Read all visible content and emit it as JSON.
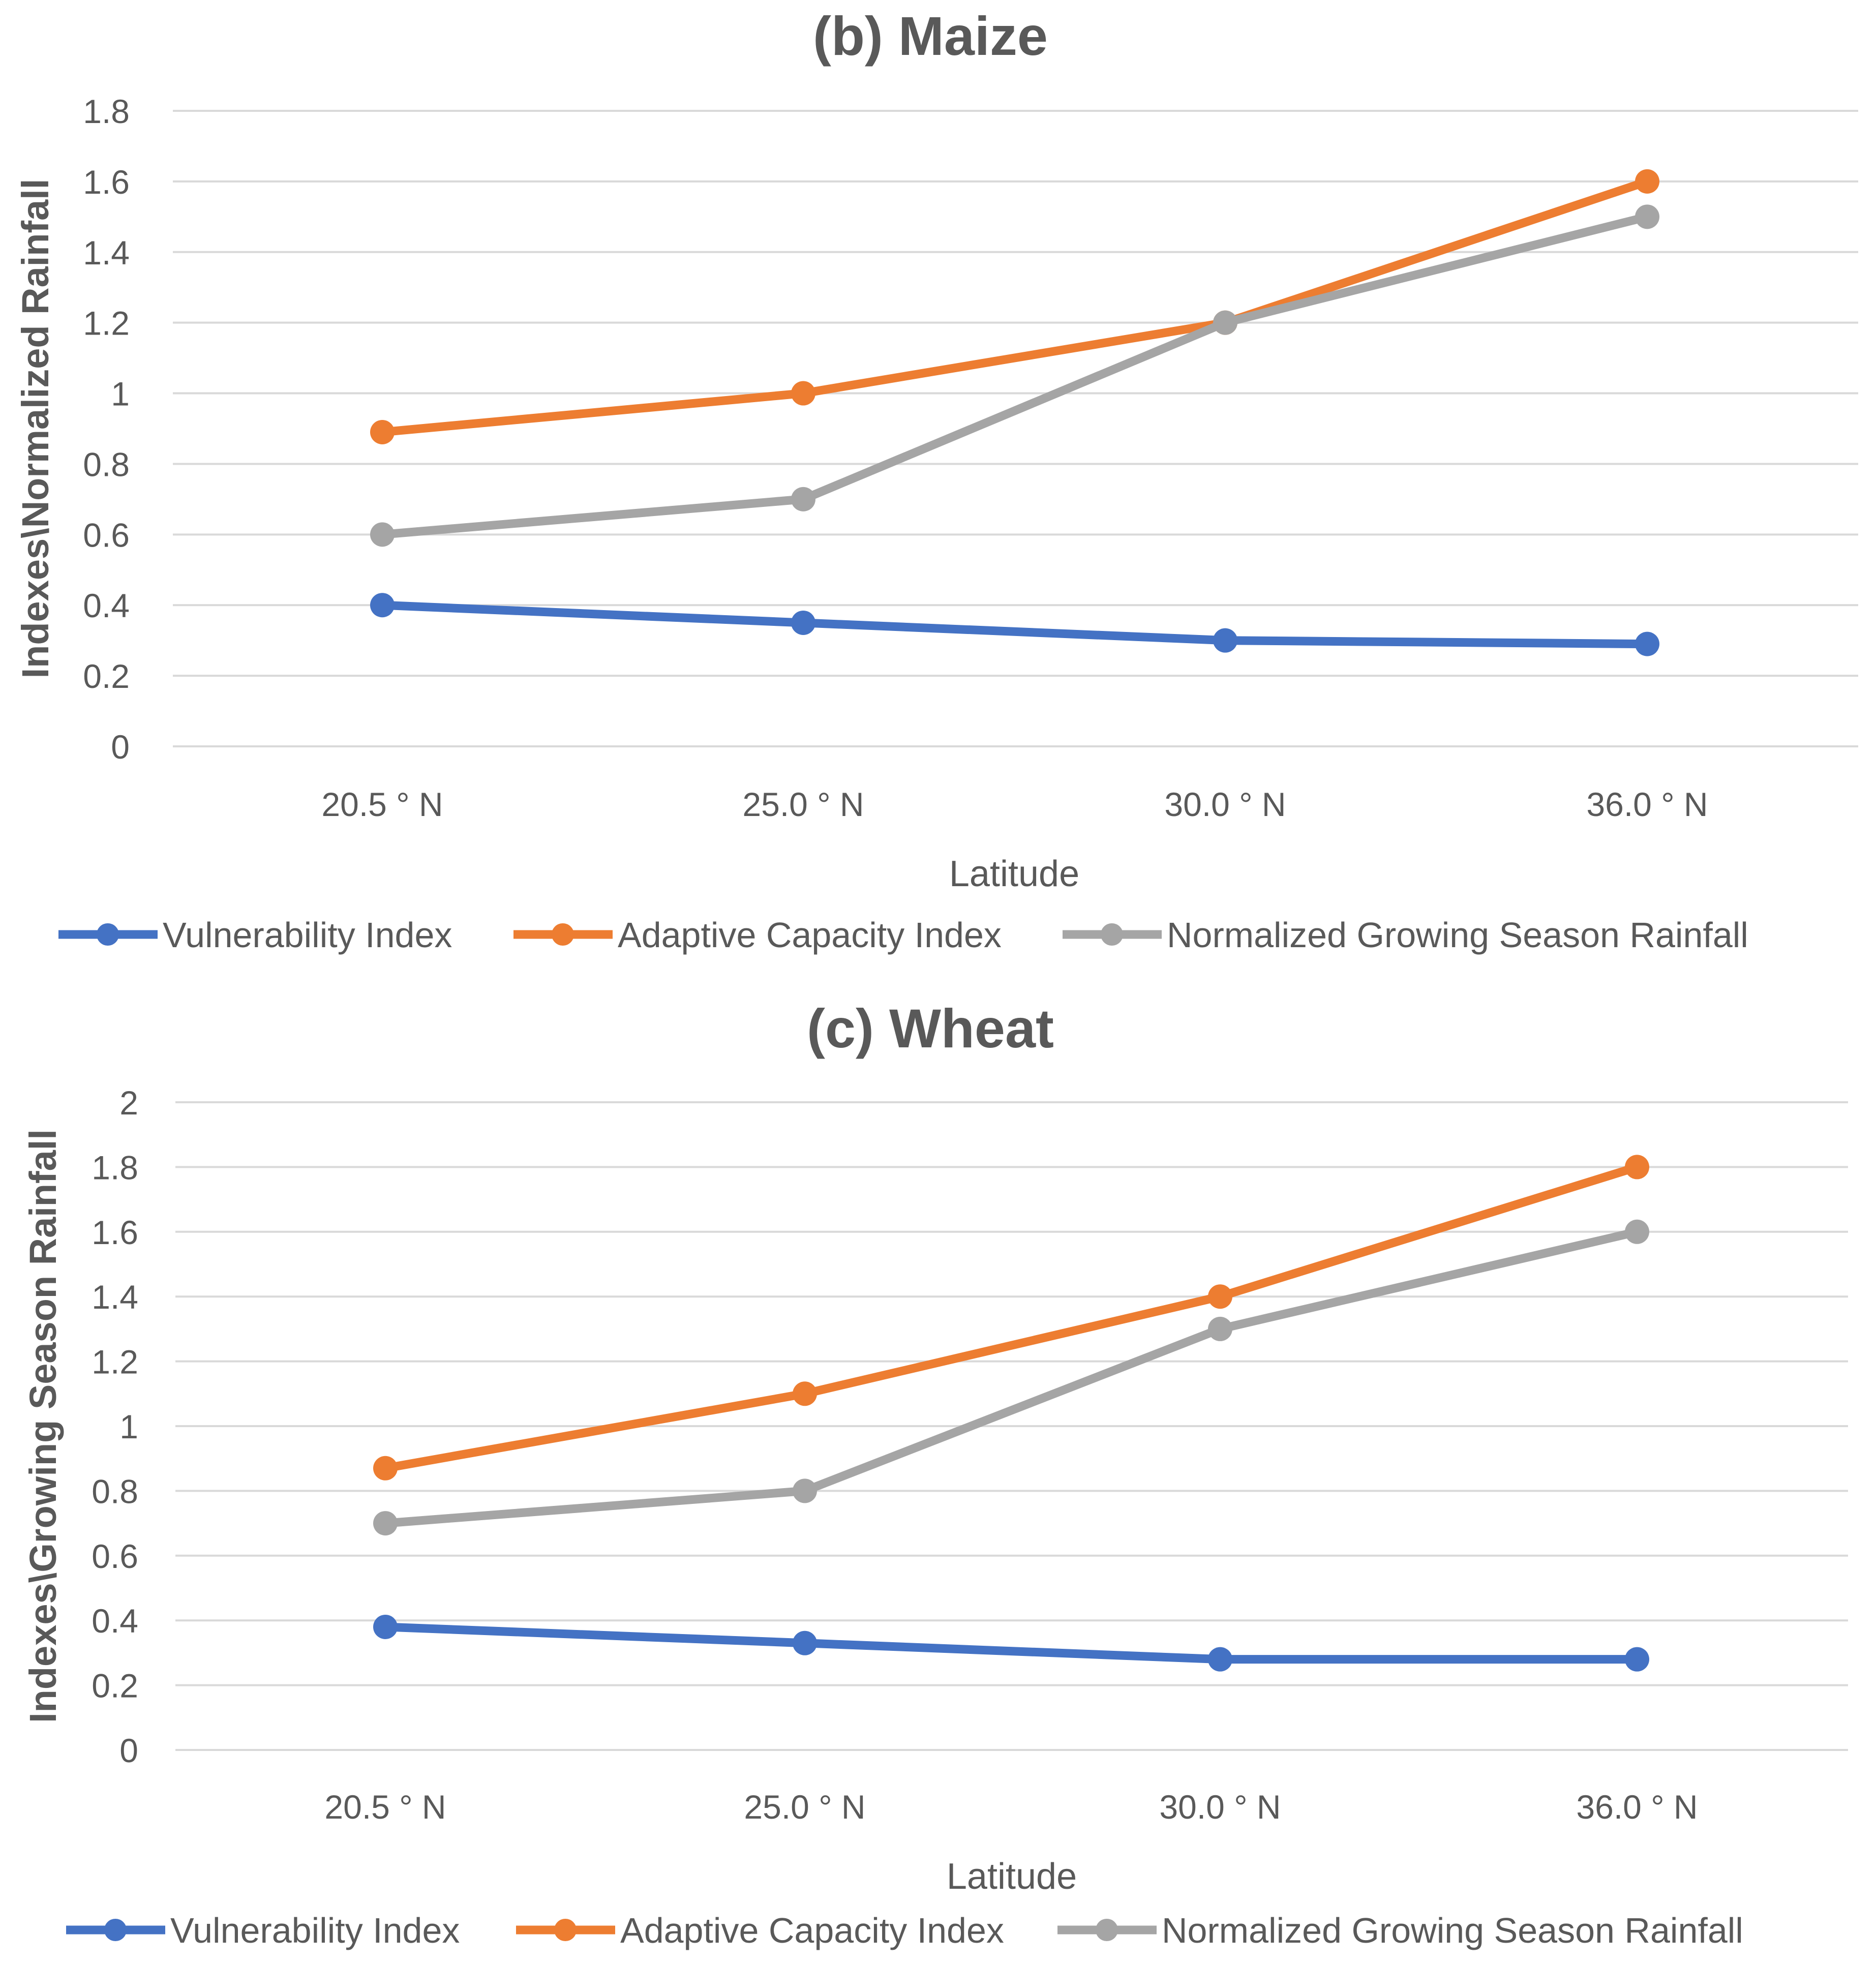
{
  "chart_data": [
    {
      "type": "line",
      "title": "(b) Maize",
      "xlabel": "Latitude",
      "ylabel": "Indexes\\Normalized Rainfall",
      "categories": [
        "20.5 ° N",
        "25.0 ° N",
        "30.0 ° N",
        "36.0 ° N"
      ],
      "ylim": [
        0,
        1.8
      ],
      "yticks": [
        0,
        0.2,
        0.4,
        0.6,
        0.8,
        1,
        1.2,
        1.4,
        1.6,
        1.8
      ],
      "ytick_labels": [
        "0",
        "0.2",
        "0.4",
        "0.6",
        "0.8",
        "1",
        "1.2",
        "1.4",
        "1.6",
        "1.8"
      ],
      "grid": true,
      "legend": "bottom",
      "series": [
        {
          "name": "Vulnerability Index",
          "color": "#4472c4",
          "values": [
            0.4,
            0.35,
            0.3,
            0.29
          ]
        },
        {
          "name": "Adaptive Capacity Index",
          "color": "#ed7d31",
          "values": [
            0.89,
            1.0,
            1.2,
            1.6
          ]
        },
        {
          "name": "Normalized Growing Season Rainfall",
          "color": "#a5a5a5",
          "values": [
            0.6,
            0.7,
            1.2,
            1.5
          ]
        }
      ]
    },
    {
      "type": "line",
      "title": "(c) Wheat",
      "xlabel": "Latitude",
      "ylabel": "Indexes\\Growing Season Rainfall",
      "categories": [
        "20.5 ° N",
        "25.0 ° N",
        "30.0 ° N",
        "36.0 ° N"
      ],
      "ylim": [
        0,
        2
      ],
      "yticks": [
        0,
        0.2,
        0.4,
        0.6,
        0.8,
        1,
        1.2,
        1.4,
        1.6,
        1.8,
        2
      ],
      "ytick_labels": [
        "0",
        "0.2",
        "0.4",
        "0.6",
        "0.8",
        "1",
        "1.2",
        "1.4",
        "1.6",
        "1.8",
        "2"
      ],
      "grid": true,
      "legend": "bottom",
      "series": [
        {
          "name": "Vulnerability Index",
          "color": "#4472c4",
          "values": [
            0.38,
            0.33,
            0.28,
            0.28
          ]
        },
        {
          "name": "Adaptive Capacity Index",
          "color": "#ed7d31",
          "values": [
            0.87,
            1.1,
            1.4,
            1.8
          ]
        },
        {
          "name": "Normalized Growing Season Rainfall",
          "color": "#a5a5a5",
          "values": [
            0.7,
            0.8,
            1.3,
            1.6
          ]
        }
      ]
    }
  ]
}
